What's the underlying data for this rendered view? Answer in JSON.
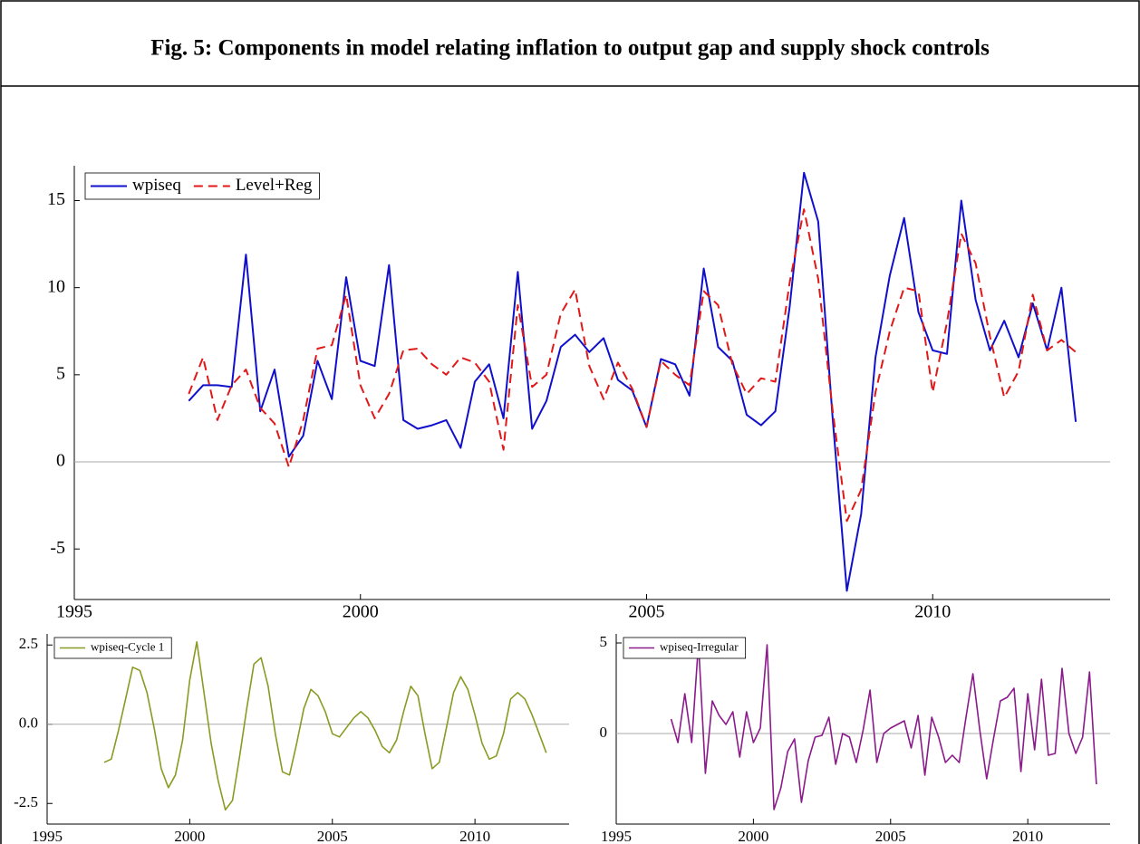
{
  "title": "Fig. 5: Components in model relating inflation to output gap and supply shock controls",
  "chart_data": [
    {
      "type": "line",
      "x": [
        1997,
        1997.25,
        1997.5,
        1997.75,
        1998,
        1998.25,
        1998.5,
        1998.75,
        1999,
        1999.25,
        1999.5,
        1999.75,
        2000,
        2000.25,
        2000.5,
        2000.75,
        2001,
        2001.25,
        2001.5,
        2001.75,
        2002,
        2002.25,
        2002.5,
        2002.75,
        2003,
        2003.25,
        2003.5,
        2003.75,
        2004,
        2004.25,
        2004.5,
        2004.75,
        2005,
        2005.25,
        2005.5,
        2005.75,
        2006,
        2006.25,
        2006.5,
        2006.75,
        2007,
        2007.25,
        2007.5,
        2007.75,
        2008,
        2008.25,
        2008.5,
        2008.75,
        2009,
        2009.25,
        2009.5,
        2009.75,
        2010,
        2010.25,
        2010.5,
        2010.75,
        2011,
        2011.25,
        2011.5,
        2011.75,
        2012,
        2012.25,
        2012.5
      ],
      "series": [
        {
          "name": "wpiseq",
          "color": "#1010cc",
          "dash": false,
          "values": [
            3.5,
            4.4,
            4.4,
            4.3,
            11.9,
            2.9,
            5.3,
            0.3,
            1.5,
            5.8,
            3.6,
            10.6,
            5.8,
            5.5,
            11.3,
            2.4,
            1.9,
            2.1,
            2.4,
            0.8,
            4.6,
            5.6,
            2.5,
            10.9,
            1.9,
            3.5,
            6.6,
            7.3,
            6.3,
            7.1,
            4.7,
            4.1,
            2.0,
            5.9,
            5.6,
            3.8,
            11.1,
            6.6,
            5.8,
            2.7,
            2.1,
            2.9,
            8.9,
            16.6,
            13.8,
            2.6,
            -7.4,
            -3.0,
            6.0,
            10.7,
            14.0,
            8.6,
            6.4,
            6.2,
            15.0,
            9.3,
            6.4,
            8.1,
            6.0,
            9.1,
            6.4,
            10.0,
            2.3
          ]
        },
        {
          "name": "Level+Reg",
          "color": "#e01818",
          "dash": true,
          "values": [
            3.9,
            6.0,
            2.4,
            4.4,
            5.3,
            3.1,
            2.2,
            -0.3,
            2.4,
            6.5,
            6.7,
            9.6,
            4.4,
            2.5,
            3.9,
            6.4,
            6.5,
            5.6,
            5.0,
            6.0,
            5.7,
            4.6,
            0.7,
            9.0,
            4.3,
            5.0,
            8.5,
            9.9,
            5.5,
            3.6,
            5.7,
            4.2,
            2.0,
            5.8,
            5.0,
            4.4,
            9.8,
            9.0,
            5.6,
            3.9,
            4.8,
            4.6,
            10.3,
            14.5,
            10.5,
            3.0,
            -3.4,
            -1.6,
            4.0,
            7.5,
            10.0,
            9.8,
            4.0,
            8.0,
            13.1,
            11.4,
            7.2,
            3.7,
            5.2,
            9.6,
            6.4,
            7.0,
            6.3
          ]
        }
      ],
      "xlim": [
        1995,
        2013.1
      ],
      "ylim": [
        -7.9,
        17
      ],
      "xticks": [
        1995,
        2000,
        2005,
        2010
      ],
      "yticks": [
        -5,
        0,
        5,
        10,
        15
      ],
      "reference_line": 0,
      "legend": "upper-left"
    },
    {
      "type": "line",
      "x": [
        1997,
        1997.25,
        1997.5,
        1997.75,
        1998,
        1998.25,
        1998.5,
        1998.75,
        1999,
        1999.25,
        1999.5,
        1999.75,
        2000,
        2000.25,
        2000.5,
        2000.75,
        2001,
        2001.25,
        2001.5,
        2001.75,
        2002,
        2002.25,
        2002.5,
        2002.75,
        2003,
        2003.25,
        2003.5,
        2003.75,
        2004,
        2004.25,
        2004.5,
        2004.75,
        2005,
        2005.25,
        2005.5,
        2005.75,
        2006,
        2006.25,
        2006.5,
        2006.75,
        2007,
        2007.25,
        2007.5,
        2007.75,
        2008,
        2008.25,
        2008.5,
        2008.75,
        2009,
        2009.25,
        2009.5,
        2009.75,
        2010,
        2010.25,
        2010.5,
        2010.75,
        2011,
        2011.25,
        2011.5,
        2011.75,
        2012,
        2012.25,
        2012.5
      ],
      "series": [
        {
          "name": "wpiseq-Cycle 1",
          "color": "#8a9a22",
          "dash": false,
          "values": [
            -1.2,
            -1.1,
            -0.2,
            0.8,
            1.8,
            1.7,
            1.0,
            -0.1,
            -1.4,
            -2.0,
            -1.6,
            -0.5,
            1.4,
            2.6,
            1.0,
            -0.6,
            -1.8,
            -2.7,
            -2.4,
            -1.0,
            0.5,
            1.9,
            2.1,
            1.2,
            -0.3,
            -1.5,
            -1.6,
            -0.6,
            0.5,
            1.1,
            0.9,
            0.4,
            -0.3,
            -0.4,
            -0.1,
            0.2,
            0.4,
            0.2,
            -0.2,
            -0.7,
            -0.9,
            -0.5,
            0.4,
            1.2,
            0.9,
            -0.3,
            -1.4,
            -1.2,
            -0.1,
            1.0,
            1.5,
            1.1,
            0.3,
            -0.6,
            -1.1,
            -1.0,
            -0.3,
            0.8,
            1.0,
            0.8,
            0.3,
            -0.3,
            -0.9
          ]
        }
      ],
      "xlim": [
        1995,
        2013.3
      ],
      "ylim": [
        -3.15,
        2.85
      ],
      "xticks": [
        1995,
        2000,
        2005,
        2010
      ],
      "yticks": [
        -2.5,
        {
          "value": 0,
          "label": "0.0"
        },
        2.5
      ],
      "reference_line": 0,
      "legend": "upper-left"
    },
    {
      "type": "line",
      "x": [
        1997,
        1997.25,
        1997.5,
        1997.75,
        1998,
        1998.25,
        1998.5,
        1998.75,
        1999,
        1999.25,
        1999.5,
        1999.75,
        2000,
        2000.25,
        2000.5,
        2000.75,
        2001,
        2001.25,
        2001.5,
        2001.75,
        2002,
        2002.25,
        2002.5,
        2002.75,
        2003,
        2003.25,
        2003.5,
        2003.75,
        2004,
        2004.25,
        2004.5,
        2004.75,
        2005,
        2005.25,
        2005.5,
        2005.75,
        2006,
        2006.25,
        2006.5,
        2006.75,
        2007,
        2007.25,
        2007.5,
        2007.75,
        2008,
        2008.25,
        2008.5,
        2008.75,
        2009,
        2009.25,
        2009.5,
        2009.75,
        2010,
        2010.25,
        2010.5,
        2010.75,
        2011,
        2011.25,
        2011.5,
        2011.75,
        2012,
        2012.25,
        2012.5
      ],
      "series": [
        {
          "name": "wpiseq-Irregular",
          "color": "#8b1a8b",
          "dash": false,
          "values": [
            0.8,
            -0.5,
            2.2,
            -0.5,
            5.0,
            -2.2,
            1.8,
            1.0,
            0.5,
            1.2,
            -1.3,
            1.2,
            -0.5,
            0.3,
            4.9,
            -4.2,
            -3.0,
            -1.0,
            -0.3,
            -3.8,
            -1.5,
            -0.2,
            -0.1,
            0.9,
            -1.7,
            0.0,
            -0.2,
            -1.6,
            0.2,
            2.4,
            -1.6,
            0.0,
            0.3,
            0.5,
            0.7,
            -0.8,
            1.0,
            -2.3,
            0.9,
            -0.2,
            -1.6,
            -1.2,
            -1.6,
            0.9,
            3.3,
            0.2,
            -2.5,
            -0.3,
            1.8,
            2.0,
            2.5,
            -2.1,
            2.2,
            -0.9,
            3.0,
            -1.2,
            -1.1,
            3.6,
            0.0,
            -1.1,
            -0.2,
            3.4,
            -2.8
          ]
        }
      ],
      "xlim": [
        1995,
        2013.0
      ],
      "ylim": [
        -5,
        5.5
      ],
      "xticks": [
        1995,
        2000,
        2005,
        2010
      ],
      "yticks": [
        0,
        5
      ],
      "reference_line": 0,
      "legend": "upper-left"
    }
  ]
}
